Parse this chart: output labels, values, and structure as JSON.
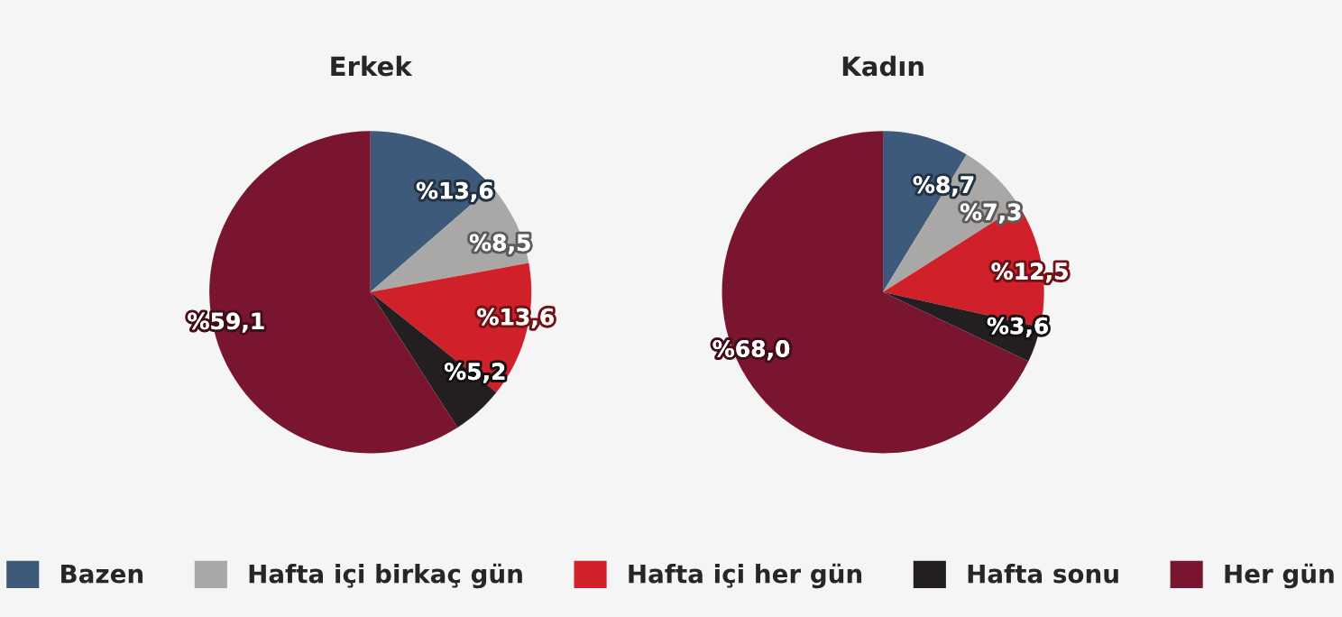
{
  "chart_data": {
    "type": "pie",
    "categories": [
      "Bazen",
      "Hafta içi birkaç gün",
      "Hafta içi her gün",
      "Hafta sonu",
      "Her gün"
    ],
    "colors": [
      "#3d5a7a",
      "#aaa8a6",
      "#d0202a",
      "#231f20",
      "#7a1530"
    ],
    "legend": "bottom",
    "series": [
      {
        "name": "Erkek",
        "values": [
          13.6,
          8.5,
          13.6,
          5.2,
          59.1
        ],
        "value_labels": [
          "%13,6",
          "%8,5",
          "%13,6",
          "%5,2",
          "%59,1"
        ]
      },
      {
        "name": "Kadın",
        "values": [
          8.7,
          7.3,
          12.5,
          3.6,
          68.0
        ],
        "value_labels": [
          "%8,7",
          "%7,3",
          "%12,5",
          "%3,6",
          "%68,0"
        ]
      }
    ]
  }
}
